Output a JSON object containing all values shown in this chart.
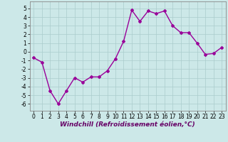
{
  "x": [
    0,
    1,
    2,
    3,
    4,
    5,
    6,
    7,
    8,
    9,
    10,
    11,
    12,
    13,
    14,
    15,
    16,
    17,
    18,
    19,
    20,
    21,
    22,
    23
  ],
  "y": [
    -0.7,
    -1.2,
    -4.5,
    -6.0,
    -4.5,
    -3.0,
    -3.5,
    -2.9,
    -2.9,
    -2.2,
    -0.8,
    1.2,
    4.8,
    3.5,
    4.7,
    4.4,
    4.7,
    3.0,
    2.2,
    2.2,
    1.0,
    -0.3,
    -0.2,
    0.5
  ],
  "line_color": "#990099",
  "marker": "D",
  "marker_size": 2,
  "line_width": 1.0,
  "bg_color": "#cce8e8",
  "grid_color": "#aacccc",
  "xlabel": "Windchill (Refroidissement éolien,°C)",
  "xlim": [
    -0.5,
    23.5
  ],
  "ylim": [
    -6.8,
    5.8
  ],
  "yticks": [
    -6,
    -5,
    -4,
    -3,
    -2,
    -1,
    0,
    1,
    2,
    3,
    4,
    5
  ],
  "xticks": [
    0,
    1,
    2,
    3,
    4,
    5,
    6,
    7,
    8,
    9,
    10,
    11,
    12,
    13,
    14,
    15,
    16,
    17,
    18,
    19,
    20,
    21,
    22,
    23
  ],
  "xlabel_fontsize": 6.5,
  "tick_fontsize": 5.5
}
